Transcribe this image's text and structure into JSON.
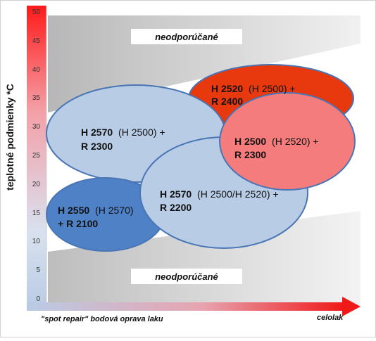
{
  "diagram": {
    "y_axis": {
      "label": "teplotné podmienky *C",
      "ticks": [
        "50",
        "45",
        "40",
        "35",
        "30",
        "25",
        "20",
        "15",
        "10",
        "5",
        "0"
      ]
    },
    "x_axis": {
      "left_label": "\"spot repair\" bodová oprava laku",
      "right_label": "celolak"
    },
    "zones": {
      "top_label": "neodporúčané",
      "bottom_label": "neodporúčané"
    },
    "products": [
      {
        "code": "H 2520",
        "paren": "(H 2500) +",
        "line2": "R 2400",
        "color": "#e8380d"
      },
      {
        "code": "H 2570",
        "paren": "(H 2500) +",
        "line2": "R 2300",
        "color": "#b8cce6"
      },
      {
        "code": "H 2500",
        "paren": "(H 2520) +",
        "line2": "R 2300",
        "color": "#f47c7c"
      },
      {
        "code": "H 2550",
        "paren": "(H 2570)",
        "line2": "+ R 2100",
        "color": "#4f81c7"
      },
      {
        "code": "H 2570",
        "paren": "(H 2500/H 2520) +",
        "line2": "R 2200",
        "color": "#b8cce6"
      }
    ]
  }
}
